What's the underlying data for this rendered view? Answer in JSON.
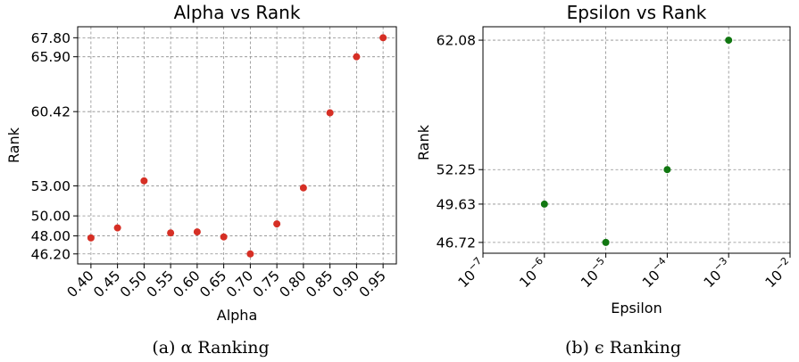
{
  "chart_data": [
    {
      "type": "scatter",
      "title": "Alpha vs Rank",
      "xlabel": "Alpha",
      "ylabel": "Rank",
      "caption": "(a) α Ranking",
      "color": "#d62f25",
      "grid": true,
      "x_scale": "linear",
      "x_ticks": [
        0.4,
        0.45,
        0.5,
        0.55,
        0.6,
        0.65,
        0.7,
        0.75,
        0.8,
        0.85,
        0.9,
        0.95
      ],
      "x_tick_labels": [
        "0.40",
        "0.45",
        "0.50",
        "0.55",
        "0.60",
        "0.65",
        "0.70",
        "0.75",
        "0.80",
        "0.85",
        "0.90",
        "0.95"
      ],
      "y_ticks": [
        46.2,
        48.0,
        50.0,
        53.0,
        60.42,
        65.9,
        67.8
      ],
      "y_tick_labels": [
        "46.20",
        "48.00",
        "50.00",
        "53.00",
        "60.42",
        "65.90",
        "67.80"
      ],
      "xlim": [
        0.375,
        0.975
      ],
      "ylim": [
        45.2,
        68.9
      ],
      "points": [
        {
          "x": 0.4,
          "y": 47.8
        },
        {
          "x": 0.45,
          "y": 48.8
        },
        {
          "x": 0.5,
          "y": 53.5
        },
        {
          "x": 0.55,
          "y": 48.3
        },
        {
          "x": 0.6,
          "y": 48.4
        },
        {
          "x": 0.65,
          "y": 47.9
        },
        {
          "x": 0.7,
          "y": 46.2
        },
        {
          "x": 0.75,
          "y": 49.2
        },
        {
          "x": 0.8,
          "y": 52.8
        },
        {
          "x": 0.85,
          "y": 60.3
        },
        {
          "x": 0.9,
          "y": 65.9
        },
        {
          "x": 0.95,
          "y": 67.8
        }
      ]
    },
    {
      "type": "scatter",
      "title": "Epsilon vs Rank",
      "xlabel": "Epsilon",
      "ylabel": "Rank",
      "caption": "(b) ϵ Ranking",
      "color": "#117711",
      "grid": true,
      "x_scale": "log",
      "x_ticks": [
        1e-07,
        1e-06,
        1e-05,
        0.0001,
        0.001,
        0.01
      ],
      "x_tick_exponents": [
        "−7",
        "−6",
        "−5",
        "−4",
        "−3",
        "−2"
      ],
      "y_ticks": [
        46.72,
        49.63,
        52.25,
        62.08
      ],
      "y_tick_labels": [
        "46.72",
        "49.63",
        "52.25",
        "62.08"
      ],
      "xlim": [
        1e-07,
        0.01
      ],
      "ylim": [
        45.9,
        63.1
      ],
      "points": [
        {
          "x": 1e-06,
          "y": 49.63
        },
        {
          "x": 1e-05,
          "y": 46.72
        },
        {
          "x": 0.0001,
          "y": 52.25
        },
        {
          "x": 0.001,
          "y": 62.08
        }
      ]
    }
  ]
}
